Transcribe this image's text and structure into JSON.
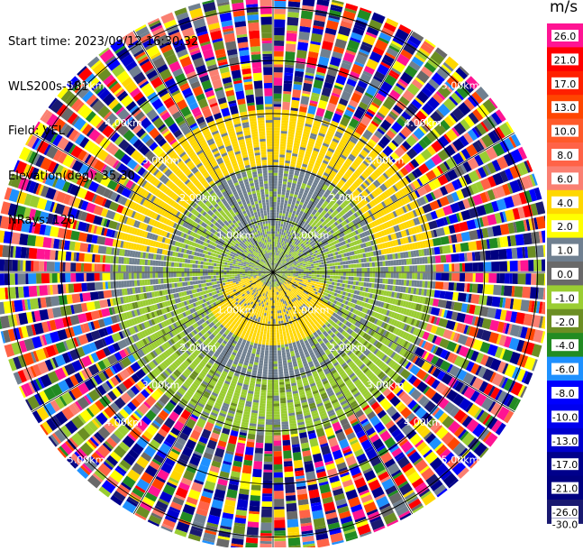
{
  "header": {
    "start_time": "Start time: 2023/09/12 16:30:32",
    "instrument": "WLS200s-181",
    "field": "Field: VEL",
    "elevation": "Elevation(deg): 35.30",
    "nrays": "NRays: 120"
  },
  "colorbar": {
    "unit": "m/s",
    "levels": [
      {
        "label": "26.0",
        "color": "#ff1493"
      },
      {
        "label": "21.0",
        "color": "#ff0000"
      },
      {
        "label": "17.0",
        "color": "#ff2000"
      },
      {
        "label": "13.0",
        "color": "#ff4500"
      },
      {
        "label": "10.0",
        "color": "#ff5a2a"
      },
      {
        "label": "8.0",
        "color": "#ff6347"
      },
      {
        "label": "6.0",
        "color": "#fa8072"
      },
      {
        "label": "4.0",
        "color": "#ffd700"
      },
      {
        "label": "2.0",
        "color": "#ffff00"
      },
      {
        "label": "1.0",
        "color": "#708090"
      },
      {
        "label": "0.0",
        "color": "#696969"
      },
      {
        "label": "-1.0",
        "color": "#9acd32"
      },
      {
        "label": "-2.0",
        "color": "#6b8e23"
      },
      {
        "label": "-4.0",
        "color": "#228b22"
      },
      {
        "label": "-6.0",
        "color": "#1e90ff"
      },
      {
        "label": "-8.0",
        "color": "#0000ff"
      },
      {
        "label": "-10.0",
        "color": "#0000ee"
      },
      {
        "label": "-13.0",
        "color": "#0000cd"
      },
      {
        "label": "-17.0",
        "color": "#00008b"
      },
      {
        "label": "-21.0",
        "color": "#000080"
      },
      {
        "label": "-26.0",
        "color": "#191970"
      }
    ],
    "bottom_label": "-30.0"
  },
  "chart_data": {
    "type": "heatmap",
    "projection": "polar (PPI scan)",
    "field": "VEL",
    "units": "m/s",
    "n_rays": 120,
    "range_rings_km": [
      1,
      2,
      3,
      4,
      5
    ],
    "range_ring_labels": [
      "1.00km",
      "2.00km",
      "3.00km",
      "4.00km",
      "5.00km"
    ],
    "azimuth_spokes_deg": [
      0,
      30,
      60,
      90,
      120,
      150,
      180,
      210,
      240,
      270,
      300,
      330
    ],
    "colorbar_bounds": [
      -30,
      -26,
      -21,
      -17,
      -13,
      -10,
      -8,
      -6,
      -4,
      -2,
      -1,
      0,
      1,
      2,
      4,
      6,
      8,
      10,
      13,
      17,
      21,
      26
    ],
    "pattern": [
      {
        "range_km": [
          0,
          1
        ],
        "note": "mixed -1.0 to 1.0 m/s (green/grey), +2..4 m/s (yellow) toward south"
      },
      {
        "range_km": [
          1,
          2
        ],
        "note": "0..1 m/s (grey) with -1..-2 m/s (green) lobes; +2 m/s (yellow) to the south"
      },
      {
        "range_km": [
          2,
          3
        ],
        "note": "+2 m/s (yellow) to the north, -1..-4 m/s (green) to the south"
      },
      {
        "range_km": [
          3,
          5.3
        ],
        "note": "noisy values spanning the full colour range"
      }
    ]
  }
}
